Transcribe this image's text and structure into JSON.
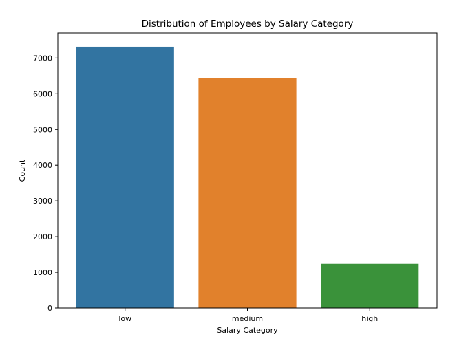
{
  "chart_data": {
    "type": "bar",
    "title": "Distribution of Employees by Salary Category",
    "xlabel": "Salary Category",
    "ylabel": "Count",
    "categories": [
      "low",
      "medium",
      "high"
    ],
    "values": [
      7316,
      6446,
      1237
    ],
    "colors": [
      "#3274a1",
      "#e1812c",
      "#3a923a"
    ],
    "ylim": [
      0,
      7700
    ],
    "yticks": [
      0,
      1000,
      2000,
      3000,
      4000,
      5000,
      6000,
      7000
    ],
    "grid": false,
    "legend": "none"
  }
}
